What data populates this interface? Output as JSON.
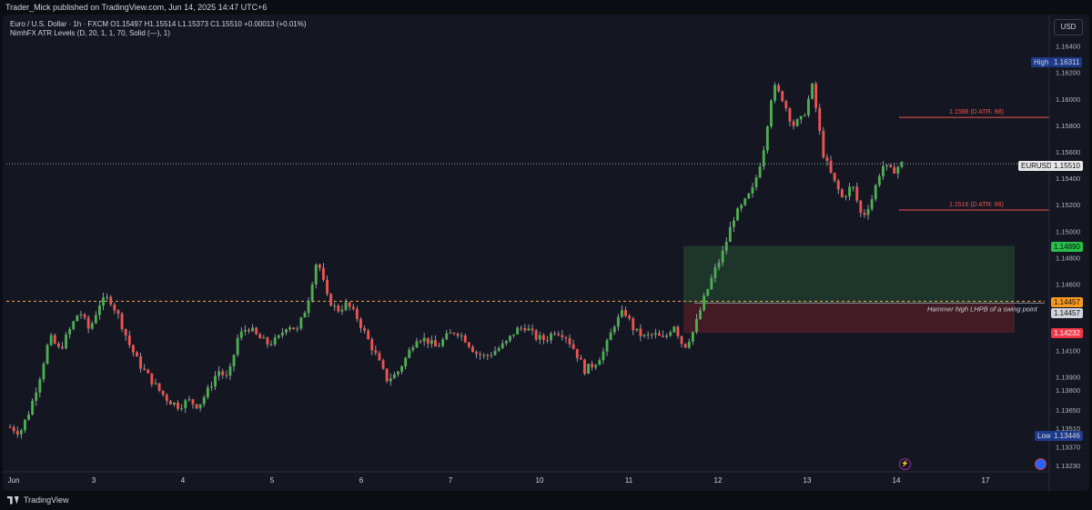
{
  "header": {
    "publisher": "Trader_Mick published on TradingView.com, Jun 14, 2025 14:47 UTC+6"
  },
  "legend": {
    "line1": "Euro / U.S. Dollar · 1h · FXCM O1.15497 H1.15514 L1.15373 C1.15510 +0.00013 (+0.01%)",
    "line2": "NimhFX ATR Levels (D, 20, 1, 1, 70, Solid (—), 1)"
  },
  "currency": "USD",
  "price_axis": {
    "ticks": [
      "1.16400",
      "1.16200",
      "1.16000",
      "1.15800",
      "1.15600",
      "1.15400",
      "1.15200",
      "1.15000",
      "1.14800",
      "1.14600",
      "1.14400",
      "1.14100",
      "1.13900",
      "1.13800",
      "1.13650",
      "1.13510",
      "1.13370",
      "1.13230"
    ]
  },
  "tags": {
    "high_label": "High",
    "high_value": "1.16311",
    "symbol_label": "EURUSD",
    "symbol_value": "1.15510",
    "green_value": "1.14890",
    "orange_value": "1.14457",
    "gray_value": "1.14457",
    "red_value": "1.14232",
    "low_label": "Low",
    "low_value": "1.13446"
  },
  "annotations": {
    "atr_upper": "1.1586 (D ATR: 98)",
    "atr_lower": "1.1516 (D ATR: 98)",
    "hammer": "Hammer high LHPB of a swing point"
  },
  "time_axis": {
    "labels": [
      "Jun",
      "3",
      "4",
      "5",
      "6",
      "7",
      "10",
      "11",
      "12",
      "13",
      "14",
      "17"
    ]
  },
  "colors": {
    "up": "#26a69a",
    "up_bright": "#4caf50",
    "down": "#ef5350",
    "wick": "#b2b5be",
    "zone_green": "#1e3b2c",
    "zone_red": "#4a1c24",
    "atr_line": "#ef5350",
    "dotted_orange": "#f7a94c",
    "tag_green": "#26c04a",
    "tag_orange": "#f79a1f",
    "tag_red": "#f23645",
    "tag_blue": "#1e3a8a"
  },
  "footer": {
    "brand": "TradingView"
  },
  "chart_data": {
    "type": "candlestick",
    "symbol": "EURUSD",
    "timeframe": "1h",
    "ylim": [
      1.1323,
      1.165
    ],
    "levels": {
      "atr_upper": 1.1586,
      "atr_lower": 1.1516,
      "hammer_high": 1.14457,
      "zone_top": 1.1489,
      "zone_bottom": 1.14232,
      "high": 1.16311,
      "low": 1.13446,
      "last": 1.1551
    },
    "path": [
      1.1352,
      1.1348,
      1.1365,
      1.139,
      1.142,
      1.141,
      1.1425,
      1.144,
      1.1425,
      1.1445,
      1.145,
      1.1435,
      1.1415,
      1.14,
      1.139,
      1.138,
      1.1372,
      1.1368,
      1.1372,
      1.1368,
      1.138,
      1.1395,
      1.1388,
      1.142,
      1.1428,
      1.142,
      1.1415,
      1.1418,
      1.143,
      1.1425,
      1.1445,
      1.148,
      1.145,
      1.144,
      1.1445,
      1.1435,
      1.142,
      1.1405,
      1.1388,
      1.1392,
      1.1405,
      1.142,
      1.1418,
      1.1412,
      1.142,
      1.1425,
      1.1418,
      1.1408,
      1.1405,
      1.141,
      1.1415,
      1.1425,
      1.1428,
      1.142,
      1.1418,
      1.1425,
      1.1422,
      1.141,
      1.1395,
      1.14,
      1.141,
      1.143,
      1.144,
      1.1425,
      1.142,
      1.1422,
      1.1418,
      1.143,
      1.1412,
      1.1425,
      1.1448,
      1.1468,
      1.1485,
      1.151,
      1.152,
      1.1532,
      1.156,
      1.161,
      1.16,
      1.158,
      1.1585,
      1.161,
      1.156,
      1.154,
      1.1525,
      1.1535,
      1.151,
      1.1525,
      1.155,
      1.1545,
      1.1551
    ]
  }
}
